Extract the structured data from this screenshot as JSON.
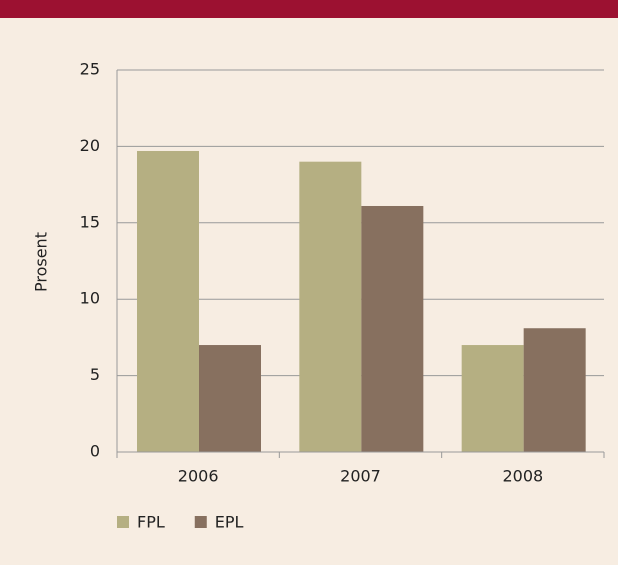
{
  "chart_data": {
    "type": "bar",
    "y_label": "Prosent",
    "categories": [
      "2006",
      "2007",
      "2008"
    ],
    "series": [
      {
        "name": "FPL",
        "color": "#b5af82",
        "values": [
          19.7,
          19.0,
          7.0
        ]
      },
      {
        "name": "EPL",
        "color": "#87705f",
        "values": [
          7.0,
          16.1,
          8.1
        ]
      }
    ],
    "ylim": [
      0,
      25
    ],
    "yticks": [
      0,
      5,
      10,
      15,
      20,
      25
    ],
    "grid": true
  }
}
